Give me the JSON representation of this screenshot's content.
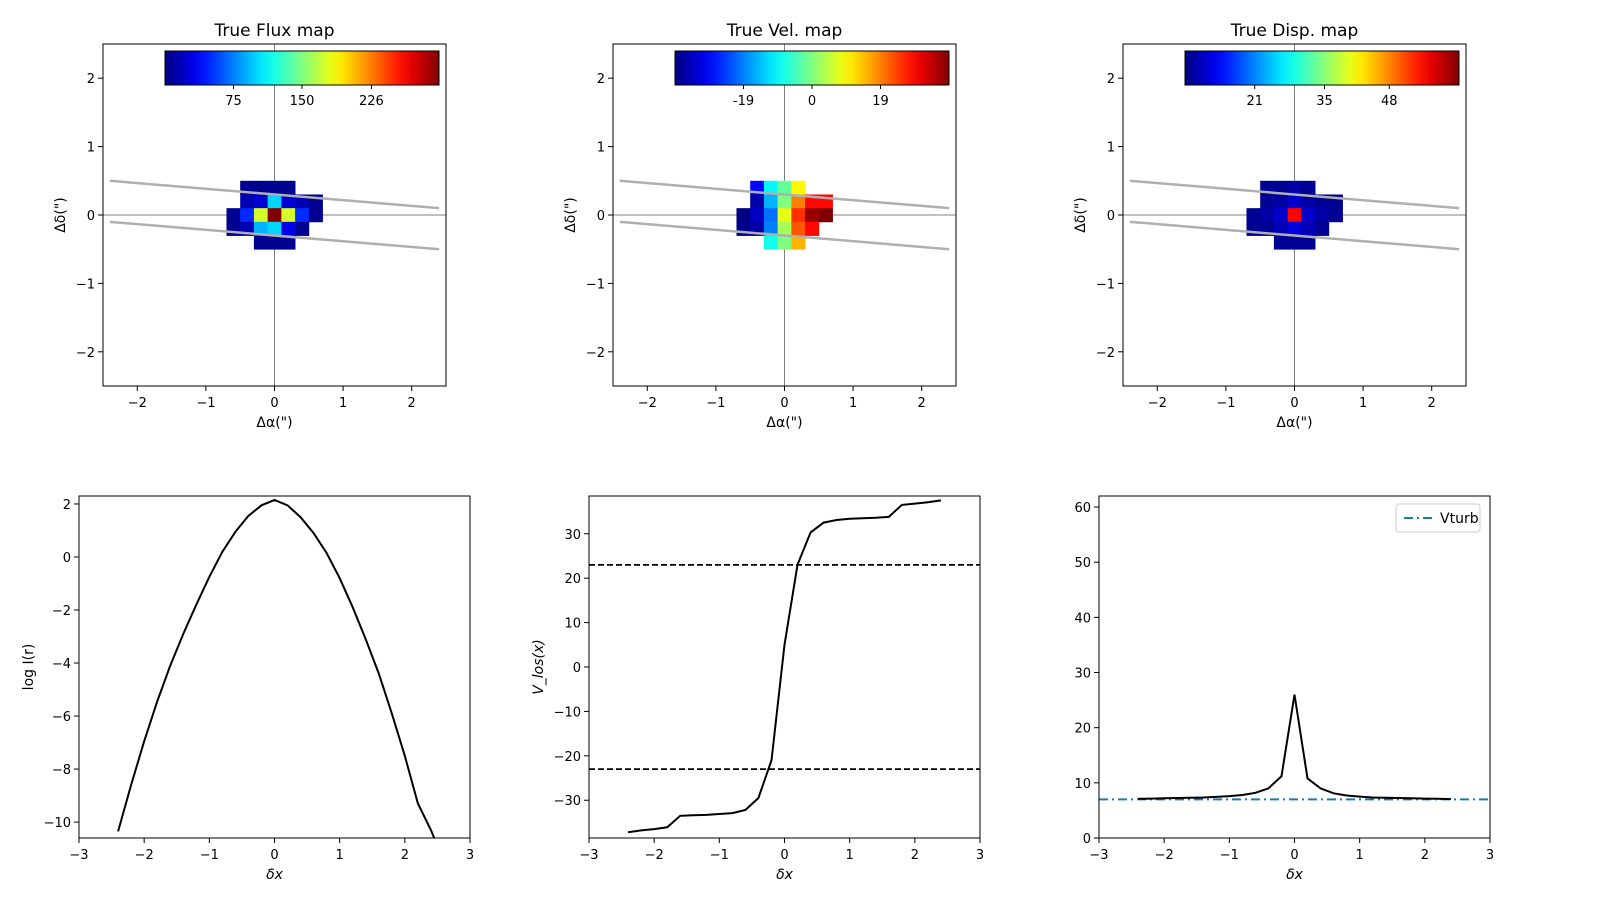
{
  "chart_data": [
    {
      "type": "heatmap",
      "title": "True Flux map",
      "xlabel": "Δα(\")",
      "ylabel": "Δδ(\")",
      "xlim": [
        -2.5,
        2.5
      ],
      "ylim": [
        -2.5,
        2.5
      ],
      "xticks": [
        -2,
        -1,
        0,
        1,
        2
      ],
      "yticks": [
        -2,
        -1,
        0,
        1,
        2
      ],
      "colormap": "jet",
      "colorbar": {
        "range": [
          0,
          300
        ],
        "ticks": [
          75,
          150,
          226
        ]
      },
      "slit_lines": [
        {
          "x": [
            -2.4,
            2.4
          ],
          "y": [
            0.5,
            0.1
          ]
        },
        {
          "x": [
            -2.4,
            2.4
          ],
          "y": [
            -0.1,
            -0.5
          ]
        }
      ],
      "pixel_size": 0.2,
      "pixels": [
        [
          -0.4,
          0.4,
          5
        ],
        [
          -0.2,
          0.4,
          5
        ],
        [
          0,
          0.4,
          5
        ],
        [
          0.2,
          0.4,
          5
        ],
        [
          -0.4,
          0.2,
          15
        ],
        [
          -0.2,
          0.2,
          25
        ],
        [
          0,
          0.2,
          100
        ],
        [
          0.2,
          0.2,
          25
        ],
        [
          0.4,
          0.2,
          15
        ],
        [
          0.6,
          0.2,
          5
        ],
        [
          -0.6,
          0,
          5
        ],
        [
          -0.4,
          0,
          50
        ],
        [
          -0.2,
          0,
          175
        ],
        [
          0,
          0,
          300
        ],
        [
          0.2,
          0,
          175
        ],
        [
          0.4,
          0,
          50
        ],
        [
          0.6,
          0,
          5
        ],
        [
          -0.6,
          -0.2,
          5
        ],
        [
          -0.4,
          -0.2,
          15
        ],
        [
          -0.2,
          -0.2,
          90
        ],
        [
          0,
          -0.2,
          100
        ],
        [
          0.2,
          -0.2,
          30
        ],
        [
          0.4,
          -0.2,
          5
        ],
        [
          -0.2,
          -0.4,
          5
        ],
        [
          0,
          -0.4,
          5
        ],
        [
          0.2,
          -0.4,
          5
        ]
      ]
    },
    {
      "type": "heatmap",
      "title": "True Vel. map",
      "xlabel": "Δα(\")",
      "ylabel": "Δδ(\")",
      "xlim": [
        -2.5,
        2.5
      ],
      "ylim": [
        -2.5,
        2.5
      ],
      "xticks": [
        -2,
        -1,
        0,
        1,
        2
      ],
      "yticks": [
        -2,
        -1,
        0,
        1,
        2
      ],
      "colormap": "jet",
      "colorbar": {
        "range": [
          -38,
          38
        ],
        "ticks": [
          -19,
          0,
          19
        ]
      },
      "slit_lines": [
        {
          "x": [
            -2.4,
            2.4
          ],
          "y": [
            0.5,
            0.1
          ]
        },
        {
          "x": [
            -2.4,
            2.4
          ],
          "y": [
            -0.1,
            -0.5
          ]
        }
      ],
      "pixel_size": 0.2,
      "pixels": [
        [
          -0.4,
          0.4,
          -28
        ],
        [
          -0.2,
          0.4,
          -10
        ],
        [
          0,
          0.4,
          -2
        ],
        [
          0.2,
          0.4,
          10
        ],
        [
          -0.4,
          0.2,
          -35
        ],
        [
          -0.2,
          0.2,
          -15
        ],
        [
          0,
          0.2,
          0
        ],
        [
          0.2,
          0.2,
          19
        ],
        [
          0.4,
          0.2,
          28
        ],
        [
          0.6,
          0.2,
          28
        ],
        [
          -0.6,
          0,
          -38
        ],
        [
          -0.4,
          0,
          -33
        ],
        [
          -0.2,
          0,
          -20
        ],
        [
          0,
          0,
          8
        ],
        [
          0.2,
          0,
          25
        ],
        [
          0.4,
          0,
          36
        ],
        [
          0.6,
          0,
          38
        ],
        [
          -0.6,
          -0.2,
          -37
        ],
        [
          -0.4,
          -0.2,
          -35
        ],
        [
          -0.2,
          -0.2,
          -19
        ],
        [
          0,
          -0.2,
          3
        ],
        [
          0.2,
          -0.2,
          22
        ],
        [
          0.4,
          -0.2,
          28
        ],
        [
          -0.2,
          -0.4,
          -8
        ],
        [
          0,
          -0.4,
          0
        ],
        [
          0.2,
          -0.4,
          15
        ]
      ]
    },
    {
      "type": "heatmap",
      "title": "True Disp. map",
      "xlabel": "Δα(\")",
      "ylabel": "Δδ(\")",
      "xlim": [
        -2.5,
        2.5
      ],
      "ylim": [
        -2.5,
        2.5
      ],
      "xticks": [
        -2,
        -1,
        0,
        1,
        2
      ],
      "yticks": [
        -2,
        -1,
        0,
        1,
        2
      ],
      "colormap": "jet",
      "colorbar": {
        "range": [
          7,
          62
        ],
        "ticks": [
          21,
          35,
          48
        ]
      },
      "slit_lines": [
        {
          "x": [
            -2.4,
            2.4
          ],
          "y": [
            0.5,
            0.1
          ]
        },
        {
          "x": [
            -2.4,
            2.4
          ],
          "y": [
            -0.1,
            -0.5
          ]
        }
      ],
      "pixel_size": 0.2,
      "pixels": [
        [
          -0.4,
          0.4,
          8
        ],
        [
          -0.2,
          0.4,
          8
        ],
        [
          0,
          0.4,
          9
        ],
        [
          0.2,
          0.4,
          8
        ],
        [
          -0.4,
          0.2,
          8
        ],
        [
          -0.2,
          0.2,
          9
        ],
        [
          0,
          0.2,
          11
        ],
        [
          0.2,
          0.2,
          9
        ],
        [
          0.4,
          0.2,
          8
        ],
        [
          0.6,
          0.2,
          8
        ],
        [
          -0.6,
          0,
          8
        ],
        [
          -0.4,
          0,
          9
        ],
        [
          -0.2,
          0,
          11
        ],
        [
          0,
          0,
          55
        ],
        [
          0.2,
          0,
          11
        ],
        [
          0.4,
          0,
          9
        ],
        [
          0.6,
          0,
          8
        ],
        [
          -0.6,
          -0.2,
          8
        ],
        [
          -0.4,
          -0.2,
          8
        ],
        [
          -0.2,
          -0.2,
          10
        ],
        [
          0,
          -0.2,
          12
        ],
        [
          0.2,
          -0.2,
          10
        ],
        [
          0.4,
          -0.2,
          8
        ],
        [
          -0.2,
          -0.4,
          8
        ],
        [
          0,
          -0.4,
          8
        ],
        [
          0.2,
          -0.4,
          8
        ]
      ]
    },
    {
      "type": "line",
      "xlabel": "δx",
      "ylabel": "log I(r)",
      "xlim": [
        -3,
        3
      ],
      "ylim": [
        -10.6,
        2.3
      ],
      "xticks": [
        -3,
        -2,
        -1,
        0,
        1,
        2,
        3
      ],
      "yticks": [
        -10,
        -8,
        -6,
        -4,
        -2,
        0,
        2
      ],
      "series": [
        {
          "x": [
            -2.4,
            -2.2,
            -2.0,
            -1.8,
            -1.6,
            -1.4,
            -1.2,
            -1.0,
            -0.8,
            -0.6,
            -0.4,
            -0.2,
            0.0,
            0.2,
            0.4,
            0.6,
            0.8,
            1.0,
            1.2,
            1.4,
            1.6,
            1.8,
            2.0,
            2.2,
            2.4,
            2.45
          ],
          "y": [
            -10.35,
            -8.6,
            -6.95,
            -5.45,
            -4.1,
            -2.9,
            -1.8,
            -0.75,
            0.2,
            0.95,
            1.55,
            1.95,
            2.15,
            1.95,
            1.5,
            0.9,
            0.15,
            -0.8,
            -1.9,
            -3.1,
            -4.4,
            -5.9,
            -7.5,
            -9.3,
            -10.3,
            -10.6
          ]
        }
      ]
    },
    {
      "type": "line",
      "xlabel": "δx",
      "ylabel": "V_los(x)",
      "xlim": [
        -3,
        3
      ],
      "ylim": [
        -38.5,
        38.5
      ],
      "xticks": [
        -3,
        -2,
        -1,
        0,
        1,
        2,
        3
      ],
      "yticks": [
        -30,
        -20,
        -10,
        0,
        10,
        20,
        30
      ],
      "hlines": [
        23,
        -23
      ],
      "series": [
        {
          "x": [
            -2.4,
            -2.2,
            -2.0,
            -1.8,
            -1.6,
            -1.4,
            -1.2,
            -1.0,
            -0.8,
            -0.6,
            -0.4,
            -0.2,
            0.0,
            0.2,
            0.4,
            0.6,
            0.8,
            1.0,
            1.2,
            1.4,
            1.6,
            1.8,
            2.0,
            2.2,
            2.4
          ],
          "y": [
            -37.2,
            -36.8,
            -36.5,
            -36.1,
            -33.5,
            -33.4,
            -33.3,
            -33.1,
            -32.9,
            -32.2,
            -29.5,
            -21.0,
            5.0,
            23.0,
            30.3,
            32.5,
            33.1,
            33.4,
            33.5,
            33.6,
            33.8,
            36.5,
            36.8,
            37.1,
            37.5
          ]
        }
      ]
    },
    {
      "type": "line",
      "xlabel": "δx",
      "ylabel": "",
      "xlim": [
        -3,
        3
      ],
      "ylim": [
        0,
        62
      ],
      "xticks": [
        -3,
        -2,
        -1,
        0,
        1,
        2,
        3
      ],
      "yticks": [
        0,
        10,
        20,
        30,
        40,
        50,
        60
      ],
      "legend": {
        "position": "top-right",
        "entries": [
          "Vturb"
        ]
      },
      "hlines": [
        7
      ],
      "series": [
        {
          "x": [
            -2.4,
            -2.2,
            -2.0,
            -1.8,
            -1.6,
            -1.4,
            -1.2,
            -1.0,
            -0.8,
            -0.6,
            -0.4,
            -0.2,
            0.0,
            0.2,
            0.4,
            0.6,
            0.8,
            1.0,
            1.2,
            1.4,
            1.6,
            1.8,
            2.0,
            2.2,
            2.4
          ],
          "y": [
            7.1,
            7.15,
            7.2,
            7.25,
            7.3,
            7.35,
            7.45,
            7.6,
            7.8,
            8.2,
            9.0,
            11.2,
            26.0,
            10.8,
            9.0,
            8.1,
            7.7,
            7.5,
            7.35,
            7.3,
            7.25,
            7.2,
            7.15,
            7.1,
            7.05
          ]
        }
      ]
    }
  ]
}
